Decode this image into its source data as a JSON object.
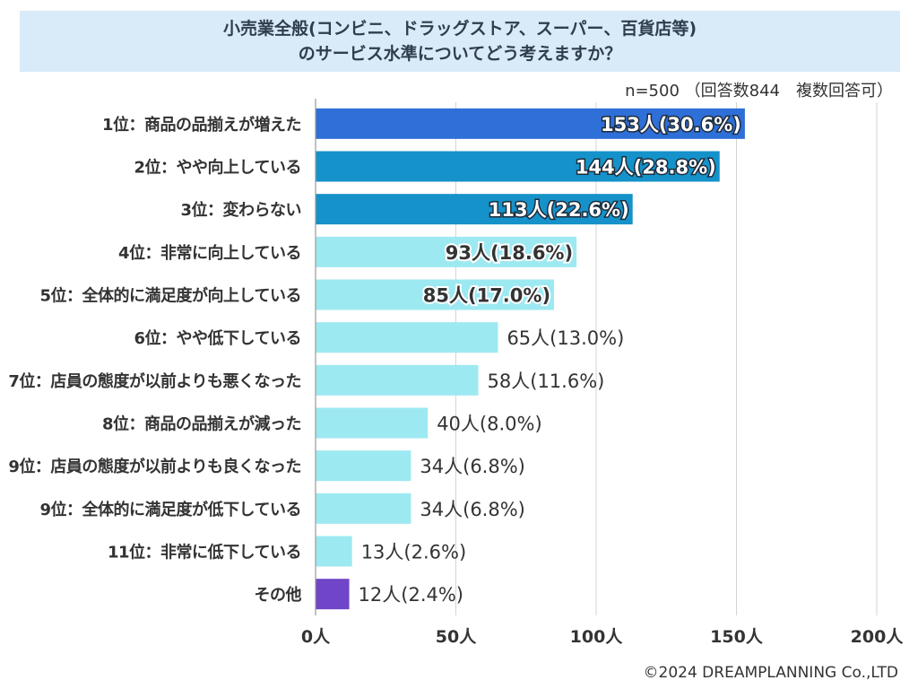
{
  "title": {
    "line1": "小売業全般(コンビニ、ドラッグストア、スーパー、百貨店等)",
    "line2": "のサービス水準についてどう考えますか？"
  },
  "sample_note": "n=500 （回答数844　複数回答可）",
  "copyright": "©2024 DREAMPLANNING Co.,LTD",
  "colors": {
    "rank1": "#2f6fd8",
    "rank2_3": "#1592c9",
    "others": "#9de9f2",
    "other_category": "#7045c7",
    "grid": "#d4d4d4",
    "text": "#333333"
  },
  "chart_data": {
    "type": "bar",
    "orientation": "horizontal",
    "unit": "人",
    "categories": [
      "1位：商品の品揃えが増えた",
      "2位：やや向上している",
      "3位：変わらない",
      "4位：非常に向上している",
      "5位：全体的に満足度が向上している",
      "6位：やや低下している",
      "7位：店員の態度が以前よりも悪くなった",
      "8位：商品の品揃えが減った",
      "9位：店員の態度が以前よりも良くなった",
      "9位：全体的に満足度が低下している",
      "11位：非常に低下している",
      "その他"
    ],
    "values": [
      153,
      144,
      113,
      93,
      85,
      65,
      58,
      40,
      34,
      34,
      13,
      12
    ],
    "data_labels": [
      "153人(30.6%)",
      "144人(28.8%)",
      "113人(22.6%)",
      "93人(18.6%)",
      "85人(17.0%)",
      "65人(13.0%)",
      "58人(11.6%)",
      "40人(8.0%)",
      "34人(6.8%)",
      "34人(6.8%)",
      "13人(2.6%)",
      "12人(2.4%)"
    ],
    "label_inside": [
      true,
      true,
      true,
      true,
      true,
      false,
      false,
      false,
      false,
      false,
      false,
      false
    ],
    "color_keys": [
      "rank1",
      "rank2_3",
      "rank2_3",
      "others",
      "others",
      "others",
      "others",
      "others",
      "others",
      "others",
      "others",
      "other_category"
    ],
    "xlim": [
      0,
      200
    ],
    "xticks": [
      0,
      50,
      100,
      150,
      200
    ],
    "xtick_labels": [
      "0人",
      "50人",
      "100人",
      "150人",
      "200人"
    ],
    "grid": true,
    "title": "小売業全般(コンビニ、ドラッグストア、スーパー、百貨店等)のサービス水準についてどう考えますか？"
  }
}
